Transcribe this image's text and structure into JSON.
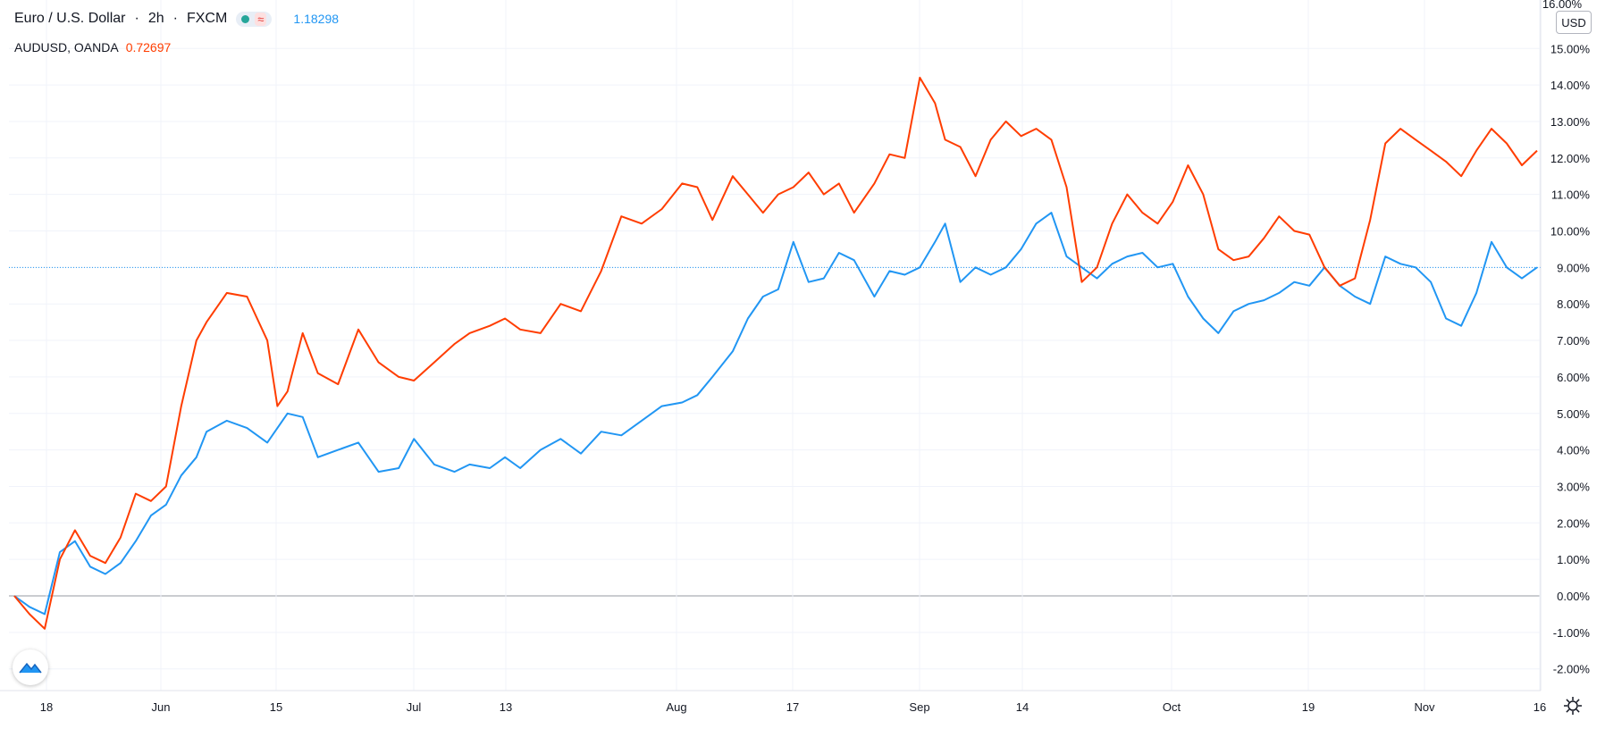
{
  "legend": {
    "main_symbol": "Euro / U.S. Dollar",
    "interval": "2h",
    "exchange": "FXCM",
    "main_price": "1.18298",
    "compare_symbol": "AUDUSD, OANDA",
    "compare_price": "0.72697"
  },
  "currency_button": "USD",
  "top_partial_label": "16.00%",
  "colors": {
    "eurusd": "#2196f3",
    "audusd": "#ff3d00",
    "grid": "#f0f3fa",
    "text": "#131722",
    "zero_line": "#9598a1"
  },
  "icons": {
    "logo": "tradingview-logo-icon",
    "settings": "gear-icon"
  },
  "chart_data": {
    "type": "line",
    "x_ticks": [
      "18",
      "Jun",
      "15",
      "Jul",
      "13",
      "Aug",
      "17",
      "Sep",
      "14",
      "Oct",
      "19",
      "Nov",
      "16"
    ],
    "y_ticks": [
      "15.00%",
      "14.00%",
      "13.00%",
      "12.00%",
      "11.00%",
      "10.00%",
      "9.00%",
      "8.00%",
      "7.00%",
      "6.00%",
      "5.00%",
      "4.00%",
      "3.00%",
      "2.00%",
      "1.00%",
      "0.00%",
      "-1.00%",
      "-2.00%"
    ],
    "ylim": [
      -2.5,
      16.5
    ],
    "ylabel_unit": "%",
    "reference_level": 9.0,
    "series": [
      {
        "name": "EURUSD",
        "key": "eurusd",
        "points": [
          [
            0,
            0
          ],
          [
            3,
            -0.3
          ],
          [
            6,
            -0.5
          ],
          [
            9,
            1.2
          ],
          [
            12,
            1.5
          ],
          [
            15,
            0.8
          ],
          [
            18,
            0.6
          ],
          [
            21,
            0.9
          ],
          [
            24,
            1.5
          ],
          [
            27,
            2.2
          ],
          [
            30,
            2.5
          ],
          [
            33,
            3.3
          ],
          [
            36,
            3.8
          ],
          [
            38,
            4.5
          ],
          [
            42,
            4.8
          ],
          [
            46,
            4.6
          ],
          [
            50,
            4.2
          ],
          [
            54,
            5.0
          ],
          [
            57,
            4.9
          ],
          [
            60,
            3.8
          ],
          [
            64,
            4.0
          ],
          [
            68,
            4.2
          ],
          [
            72,
            3.4
          ],
          [
            76,
            3.5
          ],
          [
            79,
            4.3
          ],
          [
            83,
            3.6
          ],
          [
            87,
            3.4
          ],
          [
            90,
            3.6
          ],
          [
            94,
            3.5
          ],
          [
            97,
            3.8
          ],
          [
            100,
            3.5
          ],
          [
            104,
            4.0
          ],
          [
            108,
            4.3
          ],
          [
            112,
            3.9
          ],
          [
            116,
            4.5
          ],
          [
            120,
            4.4
          ],
          [
            124,
            4.8
          ],
          [
            128,
            5.2
          ],
          [
            132,
            5.3
          ],
          [
            135,
            5.5
          ],
          [
            138,
            6.0
          ],
          [
            142,
            6.7
          ],
          [
            145,
            7.6
          ],
          [
            148,
            8.2
          ],
          [
            151,
            8.4
          ],
          [
            154,
            9.7
          ],
          [
            157,
            8.6
          ],
          [
            160,
            8.7
          ],
          [
            163,
            9.4
          ],
          [
            166,
            9.2
          ],
          [
            170,
            8.2
          ],
          [
            173,
            8.9
          ],
          [
            176,
            8.8
          ],
          [
            179,
            9.0
          ],
          [
            182,
            9.7
          ],
          [
            184,
            10.2
          ],
          [
            187,
            8.6
          ],
          [
            190,
            9.0
          ],
          [
            193,
            8.8
          ],
          [
            196,
            9.0
          ],
          [
            199,
            9.5
          ],
          [
            202,
            10.2
          ],
          [
            205,
            10.5
          ],
          [
            208,
            9.3
          ],
          [
            211,
            9.0
          ],
          [
            214,
            8.7
          ],
          [
            217,
            9.1
          ],
          [
            220,
            9.3
          ],
          [
            223,
            9.4
          ],
          [
            226,
            9.0
          ],
          [
            229,
            9.1
          ],
          [
            232,
            8.2
          ],
          [
            235,
            7.6
          ],
          [
            238,
            7.2
          ],
          [
            241,
            7.8
          ],
          [
            244,
            8.0
          ],
          [
            247,
            8.1
          ],
          [
            250,
            8.3
          ],
          [
            253,
            8.6
          ],
          [
            256,
            8.5
          ],
          [
            259,
            9.0
          ],
          [
            262,
            8.5
          ],
          [
            265,
            8.2
          ],
          [
            268,
            8.0
          ],
          [
            271,
            9.3
          ],
          [
            274,
            9.1
          ],
          [
            277,
            9.0
          ],
          [
            280,
            8.6
          ],
          [
            283,
            7.6
          ],
          [
            286,
            7.4
          ],
          [
            289,
            8.3
          ],
          [
            292,
            9.7
          ],
          [
            295,
            9.0
          ],
          [
            298,
            8.7
          ],
          [
            301,
            9.0
          ]
        ]
      },
      {
        "name": "AUDUSD",
        "key": "audusd",
        "points": [
          [
            0,
            0
          ],
          [
            3,
            -0.5
          ],
          [
            6,
            -0.9
          ],
          [
            9,
            1.0
          ],
          [
            12,
            1.8
          ],
          [
            15,
            1.1
          ],
          [
            18,
            0.9
          ],
          [
            21,
            1.6
          ],
          [
            24,
            2.8
          ],
          [
            27,
            2.6
          ],
          [
            30,
            3.0
          ],
          [
            33,
            5.2
          ],
          [
            36,
            7.0
          ],
          [
            38,
            7.5
          ],
          [
            42,
            8.3
          ],
          [
            46,
            8.2
          ],
          [
            50,
            7.0
          ],
          [
            52,
            5.2
          ],
          [
            54,
            5.6
          ],
          [
            57,
            7.2
          ],
          [
            60,
            6.1
          ],
          [
            64,
            5.8
          ],
          [
            68,
            7.3
          ],
          [
            72,
            6.4
          ],
          [
            76,
            6.0
          ],
          [
            79,
            5.9
          ],
          [
            83,
            6.4
          ],
          [
            87,
            6.9
          ],
          [
            90,
            7.2
          ],
          [
            94,
            7.4
          ],
          [
            97,
            7.6
          ],
          [
            100,
            7.3
          ],
          [
            104,
            7.2
          ],
          [
            108,
            8.0
          ],
          [
            112,
            7.8
          ],
          [
            116,
            8.9
          ],
          [
            120,
            10.4
          ],
          [
            124,
            10.2
          ],
          [
            128,
            10.6
          ],
          [
            132,
            11.3
          ],
          [
            135,
            11.2
          ],
          [
            138,
            10.3
          ],
          [
            142,
            11.5
          ],
          [
            145,
            11.0
          ],
          [
            148,
            10.5
          ],
          [
            151,
            11.0
          ],
          [
            154,
            11.2
          ],
          [
            157,
            11.6
          ],
          [
            160,
            11.0
          ],
          [
            163,
            11.3
          ],
          [
            166,
            10.5
          ],
          [
            170,
            11.3
          ],
          [
            173,
            12.1
          ],
          [
            176,
            12.0
          ],
          [
            179,
            14.2
          ],
          [
            182,
            13.5
          ],
          [
            184,
            12.5
          ],
          [
            187,
            12.3
          ],
          [
            190,
            11.5
          ],
          [
            193,
            12.5
          ],
          [
            196,
            13.0
          ],
          [
            199,
            12.6
          ],
          [
            202,
            12.8
          ],
          [
            205,
            12.5
          ],
          [
            208,
            11.2
          ],
          [
            211,
            8.6
          ],
          [
            214,
            9.0
          ],
          [
            217,
            10.2
          ],
          [
            220,
            11.0
          ],
          [
            223,
            10.5
          ],
          [
            226,
            10.2
          ],
          [
            229,
            10.8
          ],
          [
            232,
            11.8
          ],
          [
            235,
            11.0
          ],
          [
            238,
            9.5
          ],
          [
            241,
            9.2
          ],
          [
            244,
            9.3
          ],
          [
            247,
            9.8
          ],
          [
            250,
            10.4
          ],
          [
            253,
            10.0
          ],
          [
            256,
            9.9
          ],
          [
            259,
            9.0
          ],
          [
            262,
            8.5
          ],
          [
            265,
            8.7
          ],
          [
            268,
            10.3
          ],
          [
            271,
            12.4
          ],
          [
            274,
            12.8
          ],
          [
            277,
            12.5
          ],
          [
            280,
            12.2
          ],
          [
            283,
            11.9
          ],
          [
            286,
            11.5
          ],
          [
            289,
            12.2
          ],
          [
            292,
            12.8
          ],
          [
            295,
            12.4
          ],
          [
            298,
            11.8
          ],
          [
            301,
            12.2
          ]
        ]
      }
    ]
  }
}
